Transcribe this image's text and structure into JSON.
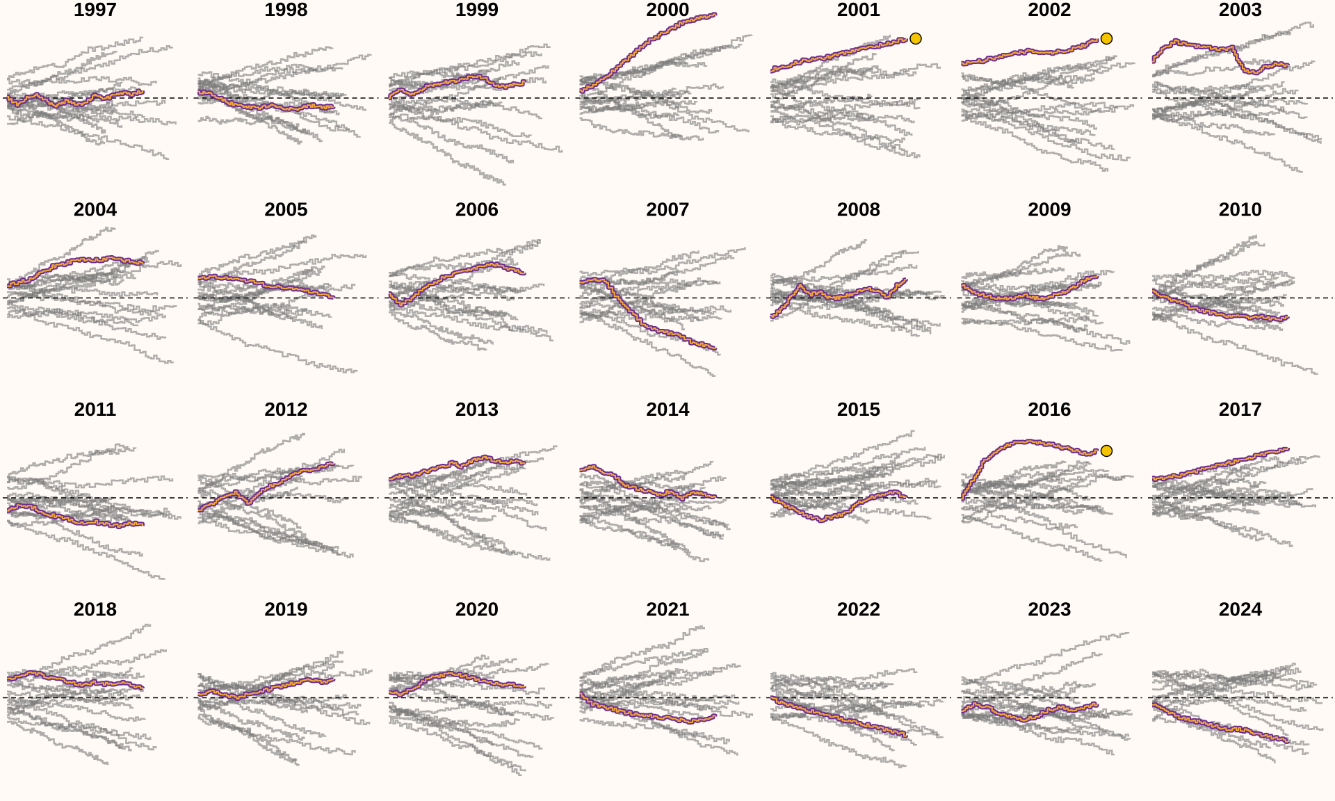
{
  "chart_data": {
    "type": "line",
    "layout": {
      "rows": 4,
      "columns": 7
    },
    "title": "",
    "xlabel": "",
    "ylabel": "",
    "reference_line": {
      "y": 0,
      "style": "dashed"
    },
    "grid": false,
    "legend": "none",
    "colors": {
      "background": "#fffaf5",
      "other_series": "#7a7a7a",
      "highlight_outer": "#6b2c8f",
      "highlight_inner": "#f2a93b",
      "end_marker": "#f5c400",
      "reference": "#000000"
    },
    "panels": [
      {
        "title": "1997",
        "highlight": [
          0,
          -0.1,
          0,
          0.05,
          -0.05,
          -0.12,
          -0.05,
          -0.1,
          -0.08,
          0.05,
          -0.02,
          0.05,
          0.08,
          0.06,
          0.12
        ],
        "highlight_end_marker": false
      },
      {
        "title": "1998",
        "highlight": [
          0.1,
          0.08,
          0,
          -0.08,
          -0.12,
          -0.15,
          -0.15,
          -0.12,
          -0.16,
          -0.18,
          -0.15,
          -0.12,
          -0.15,
          -0.14
        ],
        "highlight_end_marker": false
      },
      {
        "title": "1999",
        "highlight": [
          0,
          0.15,
          0.05,
          0.1,
          0.2,
          0.22,
          0.25,
          0.28,
          0.32,
          0.35,
          0.3,
          0.2,
          0.18,
          0.22,
          0.25
        ],
        "highlight_end_marker": false
      },
      {
        "title": "2000",
        "highlight": [
          0.1,
          0.2,
          0.3,
          0.45,
          0.6,
          0.75,
          0.9,
          1.0,
          1.1,
          1.2,
          1.25,
          1.3,
          1.32
        ],
        "highlight_end_marker": false
      },
      {
        "title": "2001",
        "highlight": [
          0.45,
          0.5,
          0.55,
          0.6,
          0.62,
          0.65,
          0.7,
          0.75,
          0.78,
          0.82,
          0.86,
          0.9,
          0.95
        ],
        "highlight_end_marker": true
      },
      {
        "title": "2002",
        "highlight": [
          0.55,
          0.58,
          0.6,
          0.65,
          0.68,
          0.72,
          0.75,
          0.74,
          0.72,
          0.75,
          0.8,
          0.85,
          0.95
        ],
        "highlight_end_marker": true
      },
      {
        "title": "2003",
        "highlight": [
          0.6,
          0.8,
          0.9,
          0.85,
          0.82,
          0.8,
          0.78,
          0.8,
          0.45,
          0.4,
          0.5,
          0.55,
          0.52
        ],
        "highlight_end_marker": false
      },
      {
        "title": "2004",
        "highlight": [
          0.2,
          0.25,
          0.3,
          0.4,
          0.5,
          0.55,
          0.6,
          0.62,
          0.6,
          0.63,
          0.6,
          0.58,
          0.55
        ],
        "highlight_end_marker": false
      },
      {
        "title": "2005",
        "highlight": [
          0.3,
          0.35,
          0.32,
          0.28,
          0.25,
          0.2,
          0.18,
          0.15,
          0.1,
          0.05,
          0.0
        ],
        "highlight_end_marker": false
      },
      {
        "title": "2006",
        "highlight": [
          0.05,
          -0.1,
          0,
          0.15,
          0.25,
          0.35,
          0.4,
          0.45,
          0.5,
          0.55,
          0.5,
          0.45,
          0.4
        ],
        "highlight_end_marker": false
      },
      {
        "title": "2007",
        "highlight": [
          0.25,
          0.3,
          0.28,
          0,
          -0.2,
          -0.4,
          -0.5,
          -0.55,
          -0.6,
          -0.7,
          -0.75,
          -0.8
        ],
        "highlight_end_marker": false
      },
      {
        "title": "2008",
        "highlight": [
          -0.3,
          -0.2,
          0,
          0.2,
          0.05,
          0.1,
          0,
          0.0,
          0.05,
          0.1,
          0.15,
          0.1,
          0.0,
          0.2,
          0.3
        ],
        "highlight_end_marker": false
      },
      {
        "title": "2009",
        "highlight": [
          0.2,
          0.1,
          0.05,
          0.0,
          0,
          0,
          0.05,
          0.0,
          0.0,
          0.05,
          0.1,
          0.2,
          0.3,
          0.35
        ],
        "highlight_end_marker": false
      },
      {
        "title": "2010",
        "highlight": [
          0.1,
          0,
          -0.05,
          -0.15,
          -0.2,
          -0.25,
          -0.3,
          -0.28,
          -0.32,
          -0.3,
          -0.35,
          -0.3
        ],
        "highlight_end_marker": false
      },
      {
        "title": "2011",
        "highlight": [
          -0.2,
          -0.1,
          -0.15,
          -0.25,
          -0.3,
          -0.35,
          -0.4,
          -0.38,
          -0.42,
          -0.45,
          -0.4,
          -0.45
        ],
        "highlight_end_marker": false
      },
      {
        "title": "2012",
        "highlight": [
          -0.2,
          -0.1,
          0,
          0.1,
          -0.1,
          0.1,
          0.2,
          0.3,
          0.4,
          0.45,
          0.5,
          0.55
        ],
        "highlight_end_marker": false
      },
      {
        "title": "2013",
        "highlight": [
          0.3,
          0.35,
          0.35,
          0.4,
          0.45,
          0.5,
          0.55,
          0.5,
          0.6,
          0.65,
          0.6,
          0.55,
          0.6,
          0.55
        ],
        "highlight_end_marker": false
      },
      {
        "title": "2014",
        "highlight": [
          0.45,
          0.5,
          0.4,
          0.35,
          0.2,
          0.15,
          0.1,
          0.05,
          0.1,
          0.0,
          0.1,
          0.05,
          0.0
        ],
        "highlight_end_marker": false
      },
      {
        "title": "2015",
        "highlight": [
          0,
          -0.1,
          -0.2,
          -0.3,
          -0.35,
          -0.3,
          -0.25,
          -0.1,
          0,
          0.05,
          0.1,
          0.0
        ],
        "highlight_end_marker": false
      },
      {
        "title": "2016",
        "highlight": [
          0,
          0.3,
          0.6,
          0.75,
          0.85,
          0.9,
          0.9,
          0.88,
          0.85,
          0.8,
          0.75,
          0.7,
          0.75
        ],
        "highlight_end_marker": true
      },
      {
        "title": "2017",
        "highlight": [
          0.3,
          0.32,
          0.35,
          0.4,
          0.45,
          0.5,
          0.55,
          0.6,
          0.65,
          0.7,
          0.75,
          0.8
        ],
        "highlight_end_marker": false
      },
      {
        "title": "2018",
        "highlight": [
          0.3,
          0.35,
          0.4,
          0.35,
          0.3,
          0.25,
          0.2,
          0.25,
          0.22,
          0.25,
          0.2,
          0.15
        ],
        "highlight_end_marker": false
      },
      {
        "title": "2019",
        "highlight": [
          0.05,
          0.1,
          0.05,
          0.0,
          0.05,
          0.1,
          0.15,
          0.2,
          0.25,
          0.3,
          0.25,
          0.3
        ],
        "highlight_end_marker": false
      },
      {
        "title": "2020",
        "highlight": [
          0.1,
          0.05,
          0.15,
          0.3,
          0.35,
          0.38,
          0.35,
          0.3,
          0.25,
          0.22,
          0.2,
          0.18
        ],
        "highlight_end_marker": false
      },
      {
        "title": "2021",
        "highlight": [
          0.05,
          -0.1,
          -0.15,
          -0.2,
          -0.25,
          -0.28,
          -0.3,
          -0.32,
          -0.35,
          -0.38,
          -0.35,
          -0.3
        ],
        "highlight_end_marker": false
      },
      {
        "title": "2022",
        "highlight": [
          0,
          -0.1,
          -0.15,
          -0.2,
          -0.25,
          -0.3,
          -0.35,
          -0.4,
          -0.45,
          -0.5,
          -0.55,
          -0.6
        ],
        "highlight_end_marker": false
      },
      {
        "title": "2023",
        "highlight": [
          -0.2,
          -0.1,
          -0.15,
          -0.25,
          -0.3,
          -0.35,
          -0.3,
          -0.2,
          -0.15,
          -0.2,
          -0.15,
          -0.1
        ],
        "highlight_end_marker": false
      },
      {
        "title": "2024",
        "highlight": [
          -0.1,
          -0.2,
          -0.3,
          -0.35,
          -0.4,
          -0.45,
          -0.5,
          -0.5,
          -0.55,
          -0.6,
          -0.65,
          -0.7
        ],
        "highlight_end_marker": false
      }
    ]
  }
}
